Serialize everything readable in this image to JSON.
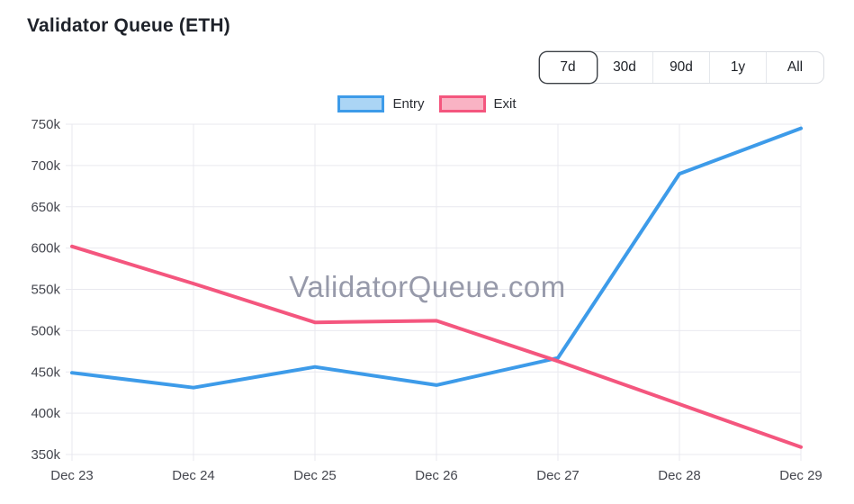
{
  "header": {
    "title": "Validator Queue (ETH)"
  },
  "toolbar": {
    "ranges": [
      {
        "label": "7d",
        "active": true
      },
      {
        "label": "30d",
        "active": false
      },
      {
        "label": "90d",
        "active": false
      },
      {
        "label": "1y",
        "active": false
      },
      {
        "label": "All",
        "active": false
      }
    ]
  },
  "chart_data": {
    "type": "line",
    "title": "Validator Queue (ETH)",
    "watermark": "ValidatorQueue.com",
    "categories": [
      "Dec 23",
      "Dec 24",
      "Dec 25",
      "Dec 26",
      "Dec 27",
      "Dec 28",
      "Dec 29"
    ],
    "series": [
      {
        "name": "Entry",
        "color": "#3d9be9",
        "legend_fill": "#abd5f5",
        "values": [
          449000,
          431000,
          456000,
          434000,
          467000,
          690000,
          745000
        ]
      },
      {
        "name": "Exit",
        "color": "#f4567e",
        "legend_fill": "#f9b3c4",
        "values": [
          602000,
          557000,
          510000,
          512000,
          463000,
          411000,
          359000
        ]
      }
    ],
    "ylim": [
      350000,
      750000
    ],
    "y_ticks": [
      {
        "label": "750k",
        "value": 750000
      },
      {
        "label": "700k",
        "value": 700000
      },
      {
        "label": "650k",
        "value": 650000
      },
      {
        "label": "600k",
        "value": 600000
      },
      {
        "label": "550k",
        "value": 550000
      },
      {
        "label": "500k",
        "value": 500000
      },
      {
        "label": "450k",
        "value": 450000
      },
      {
        "label": "400k",
        "value": 400000
      },
      {
        "label": "350k",
        "value": 350000
      }
    ],
    "grid": true,
    "legend_position": "top",
    "grid_color": "#e9e9ef",
    "xlabel": "",
    "ylabel": ""
  }
}
